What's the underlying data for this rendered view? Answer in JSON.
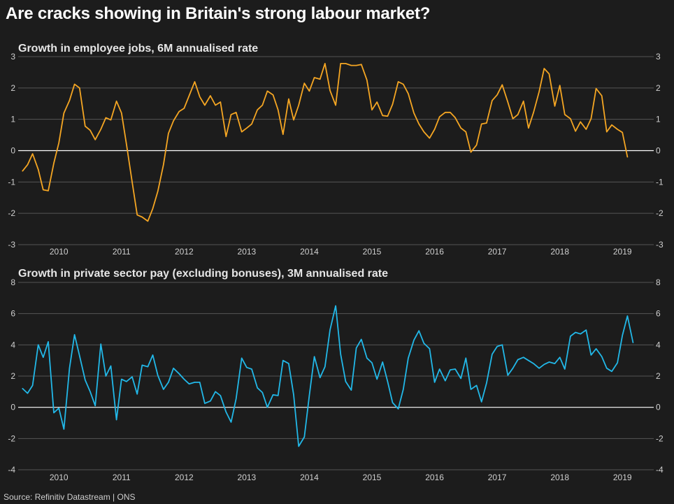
{
  "title": "Are cracks showing in Britain's strong labour market?",
  "source": "Source: Refinitiv Datastream | ONS",
  "colors": {
    "background": "#1c1c1c",
    "grid": "#555555",
    "zero": "#ffffff",
    "series1": "#f5a623",
    "series2": "#22b8e8",
    "text": "#cfcfcf"
  },
  "chart_data": [
    {
      "type": "line",
      "title": "Growth in employee jobs, 6M annualised rate",
      "xlabel": "",
      "ylabel": "",
      "ylim": [
        -3,
        3
      ],
      "yticks": [
        "3",
        "2",
        "1",
        "0",
        "-1",
        "-2",
        "-3"
      ],
      "xlim": [
        2009.35,
        2019.5
      ],
      "xticks": [
        "2010",
        "2011",
        "2012",
        "2013",
        "2014",
        "2015",
        "2016",
        "2017",
        "2018",
        "2019"
      ],
      "grid": true,
      "series": [
        {
          "name": "Employee jobs growth",
          "x": [
            2009.42,
            2009.5,
            2009.58,
            2009.67,
            2009.75,
            2009.83,
            2009.92,
            2010.0,
            2010.08,
            2010.17,
            2010.25,
            2010.33,
            2010.42,
            2010.5,
            2010.58,
            2010.67,
            2010.75,
            2010.83,
            2010.92,
            2011.0,
            2011.08,
            2011.17,
            2011.25,
            2011.33,
            2011.42,
            2011.5,
            2011.58,
            2011.67,
            2011.75,
            2011.83,
            2011.92,
            2012.0,
            2012.08,
            2012.17,
            2012.25,
            2012.33,
            2012.42,
            2012.5,
            2012.58,
            2012.67,
            2012.75,
            2012.83,
            2012.92,
            2013.0,
            2013.08,
            2013.17,
            2013.25,
            2013.33,
            2013.42,
            2013.5,
            2013.58,
            2013.67,
            2013.75,
            2013.83,
            2013.92,
            2014.0,
            2014.08,
            2014.17,
            2014.25,
            2014.33,
            2014.42,
            2014.5,
            2014.58,
            2014.67,
            2014.75,
            2014.83,
            2014.92,
            2015.0,
            2015.08,
            2015.17,
            2015.25,
            2015.33,
            2015.42,
            2015.5,
            2015.58,
            2015.67,
            2015.75,
            2015.83,
            2015.92,
            2016.0,
            2016.08,
            2016.17,
            2016.25,
            2016.33,
            2016.42,
            2016.5,
            2016.58,
            2016.67,
            2016.75,
            2016.83,
            2016.92,
            2017.0,
            2017.08,
            2017.17,
            2017.25,
            2017.33,
            2017.42,
            2017.5,
            2017.58,
            2017.67,
            2017.75,
            2017.83,
            2017.92,
            2018.0,
            2018.08,
            2018.17,
            2018.25,
            2018.33,
            2018.42,
            2018.5,
            2018.58,
            2018.67,
            2018.75,
            2018.83,
            2018.92,
            2019.0,
            2019.08
          ],
          "values": [
            -0.65,
            -0.45,
            -0.1,
            -0.6,
            -1.25,
            -1.28,
            -0.4,
            0.25,
            1.2,
            1.6,
            2.12,
            2.0,
            0.78,
            0.65,
            0.35,
            0.68,
            1.05,
            0.98,
            1.58,
            1.2,
            0.2,
            -1.0,
            -2.05,
            -2.12,
            -2.25,
            -1.85,
            -1.3,
            -0.45,
            0.55,
            0.95,
            1.25,
            1.35,
            1.75,
            2.2,
            1.72,
            1.45,
            1.75,
            1.45,
            1.55,
            0.45,
            1.15,
            1.22,
            0.6,
            0.72,
            0.85,
            1.3,
            1.45,
            1.9,
            1.78,
            1.3,
            0.52,
            1.65,
            0.98,
            1.45,
            2.15,
            1.9,
            2.33,
            2.28,
            2.78,
            1.92,
            1.45,
            2.78,
            2.78,
            2.72,
            2.72,
            2.75,
            2.25,
            1.3,
            1.55,
            1.12,
            1.1,
            1.48,
            2.2,
            2.12,
            1.82,
            1.2,
            0.85,
            0.6,
            0.4,
            0.68,
            1.08,
            1.22,
            1.22,
            1.05,
            0.72,
            0.6,
            -0.05,
            0.18,
            0.85,
            0.88,
            1.6,
            1.78,
            2.1,
            1.55,
            1.02,
            1.15,
            1.58,
            0.72,
            1.22,
            1.88,
            2.62,
            2.45,
            1.42,
            2.08,
            1.15,
            1.02,
            0.62,
            0.92,
            0.68,
            1.02,
            1.98,
            1.75,
            0.6,
            0.82,
            0.68,
            0.58,
            -0.2
          ]
        }
      ]
    },
    {
      "type": "line",
      "title": "Growth in private sector pay (excluding bonuses), 3M annualised rate",
      "xlabel": "",
      "ylabel": "",
      "ylim": [
        -4,
        8
      ],
      "yticks": [
        "8",
        "6",
        "4",
        "2",
        "0",
        "-2",
        "-4"
      ],
      "xlim": [
        2009.35,
        2019.5
      ],
      "xticks": [
        "2010",
        "2011",
        "2012",
        "2013",
        "2014",
        "2015",
        "2016",
        "2017",
        "2018",
        "2019"
      ],
      "grid": true,
      "series": [
        {
          "name": "Private sector pay growth",
          "x": [
            2009.42,
            2009.5,
            2009.58,
            2009.67,
            2009.75,
            2009.83,
            2009.92,
            2010.0,
            2010.08,
            2010.17,
            2010.25,
            2010.33,
            2010.42,
            2010.5,
            2010.58,
            2010.67,
            2010.75,
            2010.83,
            2010.92,
            2011.0,
            2011.08,
            2011.17,
            2011.25,
            2011.33,
            2011.42,
            2011.5,
            2011.58,
            2011.67,
            2011.75,
            2011.83,
            2011.92,
            2012.0,
            2012.08,
            2012.17,
            2012.25,
            2012.33,
            2012.42,
            2012.5,
            2012.58,
            2012.67,
            2012.75,
            2012.83,
            2012.92,
            2013.0,
            2013.08,
            2013.17,
            2013.25,
            2013.33,
            2013.42,
            2013.5,
            2013.58,
            2013.67,
            2013.75,
            2013.83,
            2013.92,
            2014.0,
            2014.08,
            2014.17,
            2014.25,
            2014.33,
            2014.42,
            2014.5,
            2014.58,
            2014.67,
            2014.75,
            2014.83,
            2014.92,
            2015.0,
            2015.08,
            2015.17,
            2015.25,
            2015.33,
            2015.42,
            2015.5,
            2015.58,
            2015.67,
            2015.75,
            2015.83,
            2015.92,
            2016.0,
            2016.08,
            2016.17,
            2016.25,
            2016.33,
            2016.42,
            2016.5,
            2016.58,
            2016.67,
            2016.75,
            2016.83,
            2016.92,
            2017.0,
            2017.08,
            2017.17,
            2017.25,
            2017.33,
            2017.42,
            2017.5,
            2017.58,
            2017.67,
            2017.75,
            2017.83,
            2017.92,
            2018.0,
            2018.08,
            2018.17,
            2018.25,
            2018.33,
            2018.42,
            2018.5,
            2018.58,
            2018.67,
            2018.75,
            2018.83,
            2018.92,
            2019.0,
            2019.08,
            2019.17
          ],
          "values": [
            1.2,
            0.9,
            1.4,
            4.0,
            3.2,
            4.2,
            -0.35,
            -0.05,
            -1.4,
            2.5,
            4.65,
            3.3,
            1.75,
            1.0,
            0.1,
            4.05,
            2.0,
            2.65,
            -0.8,
            1.8,
            1.65,
            1.95,
            0.85,
            2.7,
            2.6,
            3.35,
            2.05,
            1.15,
            1.6,
            2.5,
            2.15,
            1.8,
            1.5,
            1.6,
            1.6,
            0.25,
            0.4,
            1.0,
            0.75,
            -0.3,
            -0.95,
            0.55,
            3.15,
            2.55,
            2.45,
            1.25,
            0.95,
            0.0,
            0.8,
            0.75,
            3.0,
            2.8,
            0.8,
            -2.5,
            -1.9,
            0.75,
            3.25,
            1.9,
            2.6,
            4.95,
            6.5,
            3.4,
            1.65,
            1.1,
            3.8,
            4.35,
            3.15,
            2.85,
            1.8,
            2.9,
            1.65,
            0.3,
            -0.1,
            1.15,
            3.15,
            4.3,
            4.9,
            4.1,
            3.75,
            1.6,
            2.45,
            1.7,
            2.4,
            2.45,
            1.85,
            3.15,
            1.15,
            1.4,
            0.35,
            1.55,
            3.4,
            3.9,
            4.0,
            2.05,
            2.5,
            3.05,
            3.2,
            3.0,
            2.8,
            2.5,
            2.75,
            2.9,
            2.8,
            3.2,
            2.45,
            4.55,
            4.8,
            4.7,
            4.95,
            3.35,
            3.75,
            3.25,
            2.5,
            2.3,
            2.85,
            4.6,
            5.85,
            4.15
          ]
        }
      ]
    }
  ]
}
